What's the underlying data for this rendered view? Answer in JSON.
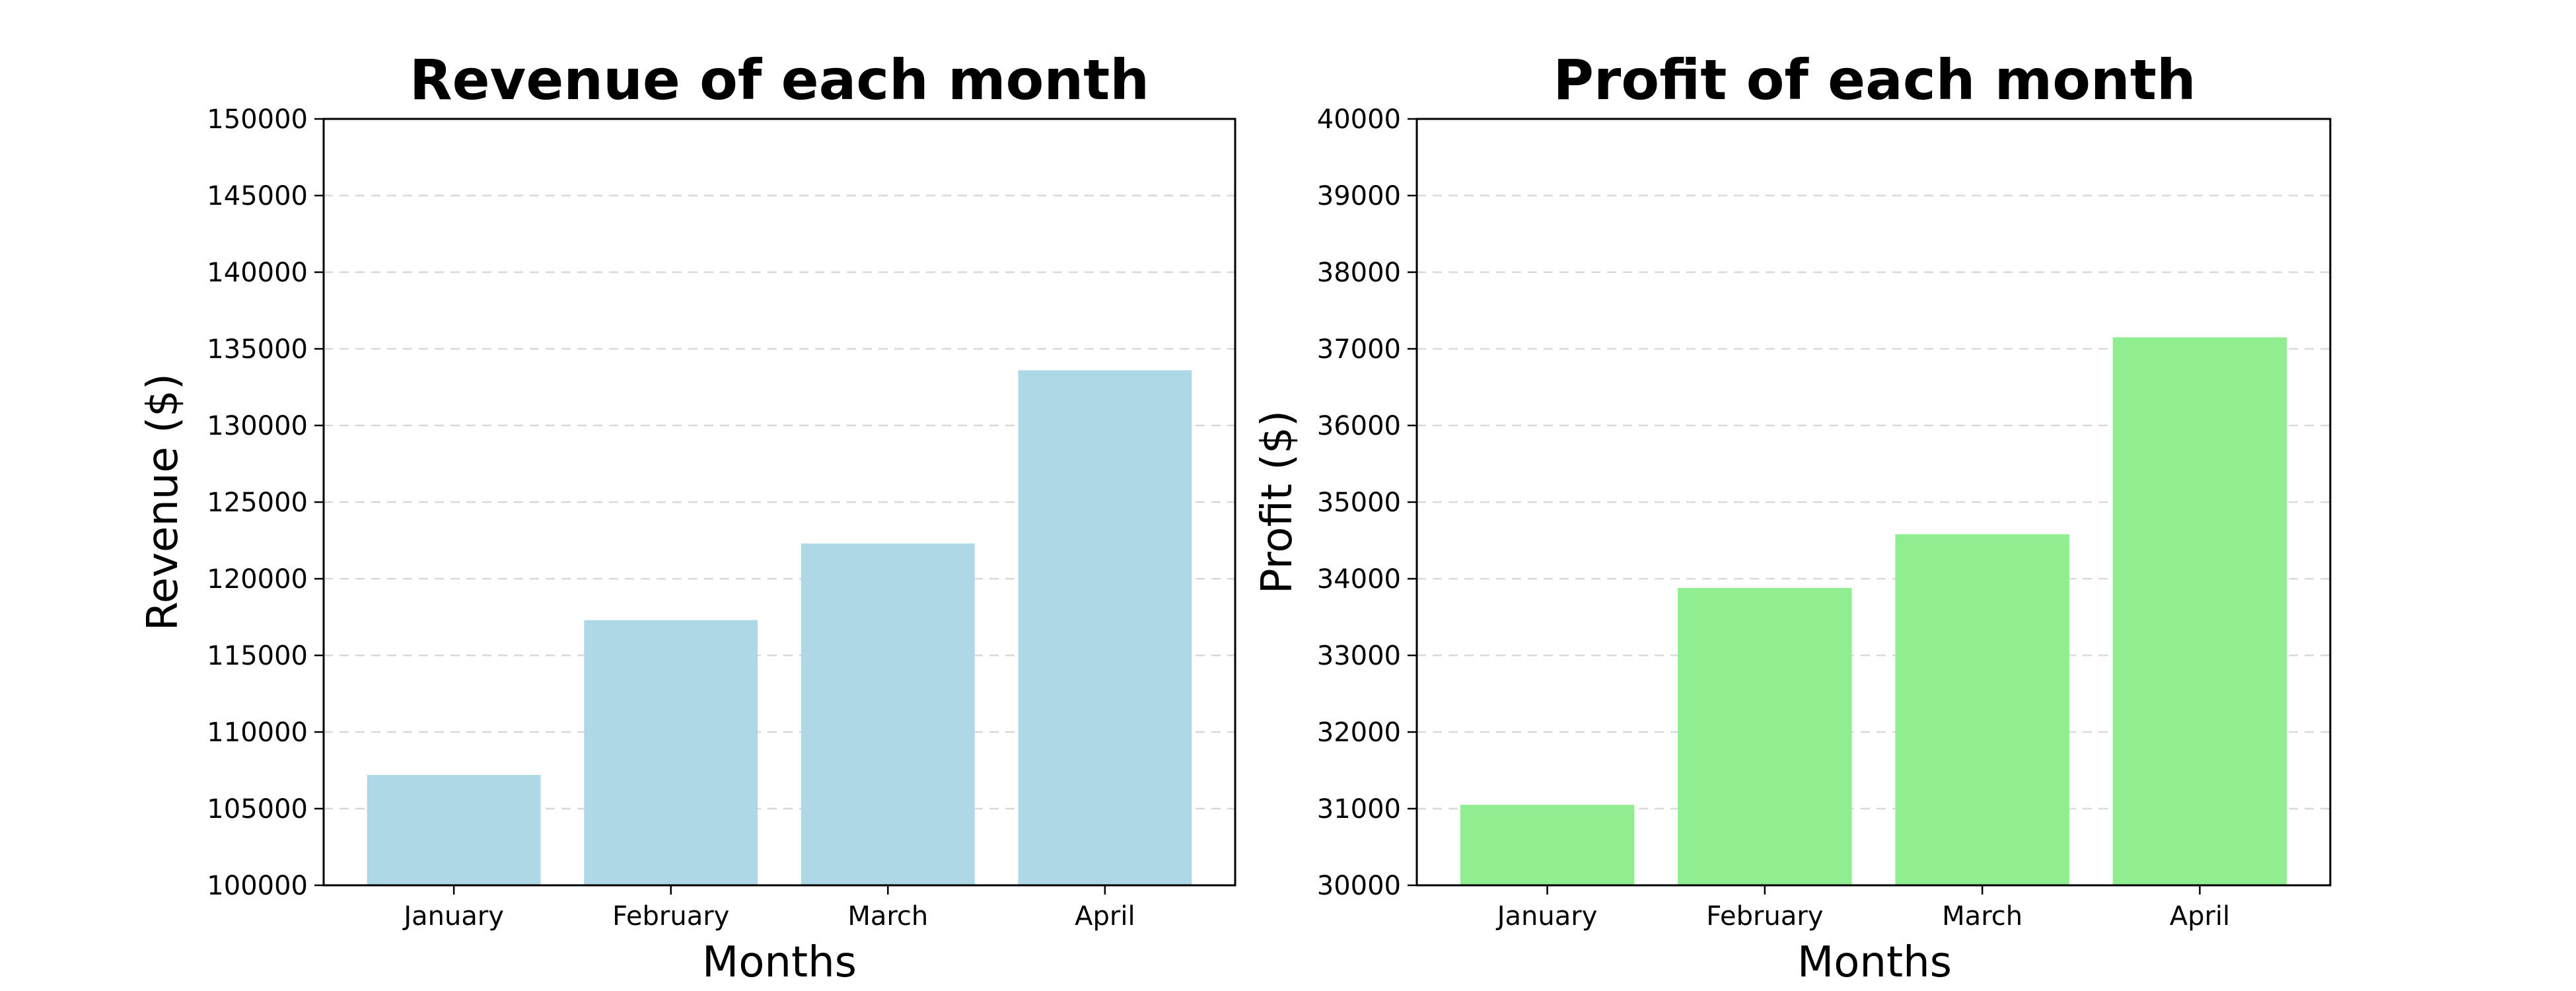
{
  "chart_data": [
    {
      "type": "bar",
      "title": "Revenue of each month",
      "xlabel": "Months",
      "ylabel": "Revenue ($)",
      "categories": [
        "January",
        "February",
        "March",
        "April"
      ],
      "values": [
        107200,
        117300,
        122300,
        133600
      ],
      "ylim": [
        100000,
        150000
      ],
      "yticks": [
        100000,
        105000,
        110000,
        115000,
        120000,
        125000,
        130000,
        135000,
        140000,
        145000,
        150000
      ],
      "grid": "y-dashed",
      "color": "#add8e6"
    },
    {
      "type": "bar",
      "title": "Profit of each month",
      "xlabel": "Months",
      "ylabel": "Profit ($)",
      "categories": [
        "January",
        "February",
        "March",
        "April"
      ],
      "values": [
        31050,
        33880,
        34580,
        37150
      ],
      "ylim": [
        30000,
        40000
      ],
      "yticks": [
        30000,
        31000,
        32000,
        33000,
        34000,
        35000,
        36000,
        37000,
        38000,
        39000,
        40000
      ],
      "grid": "y-dashed",
      "color": "#90ee90"
    }
  ]
}
